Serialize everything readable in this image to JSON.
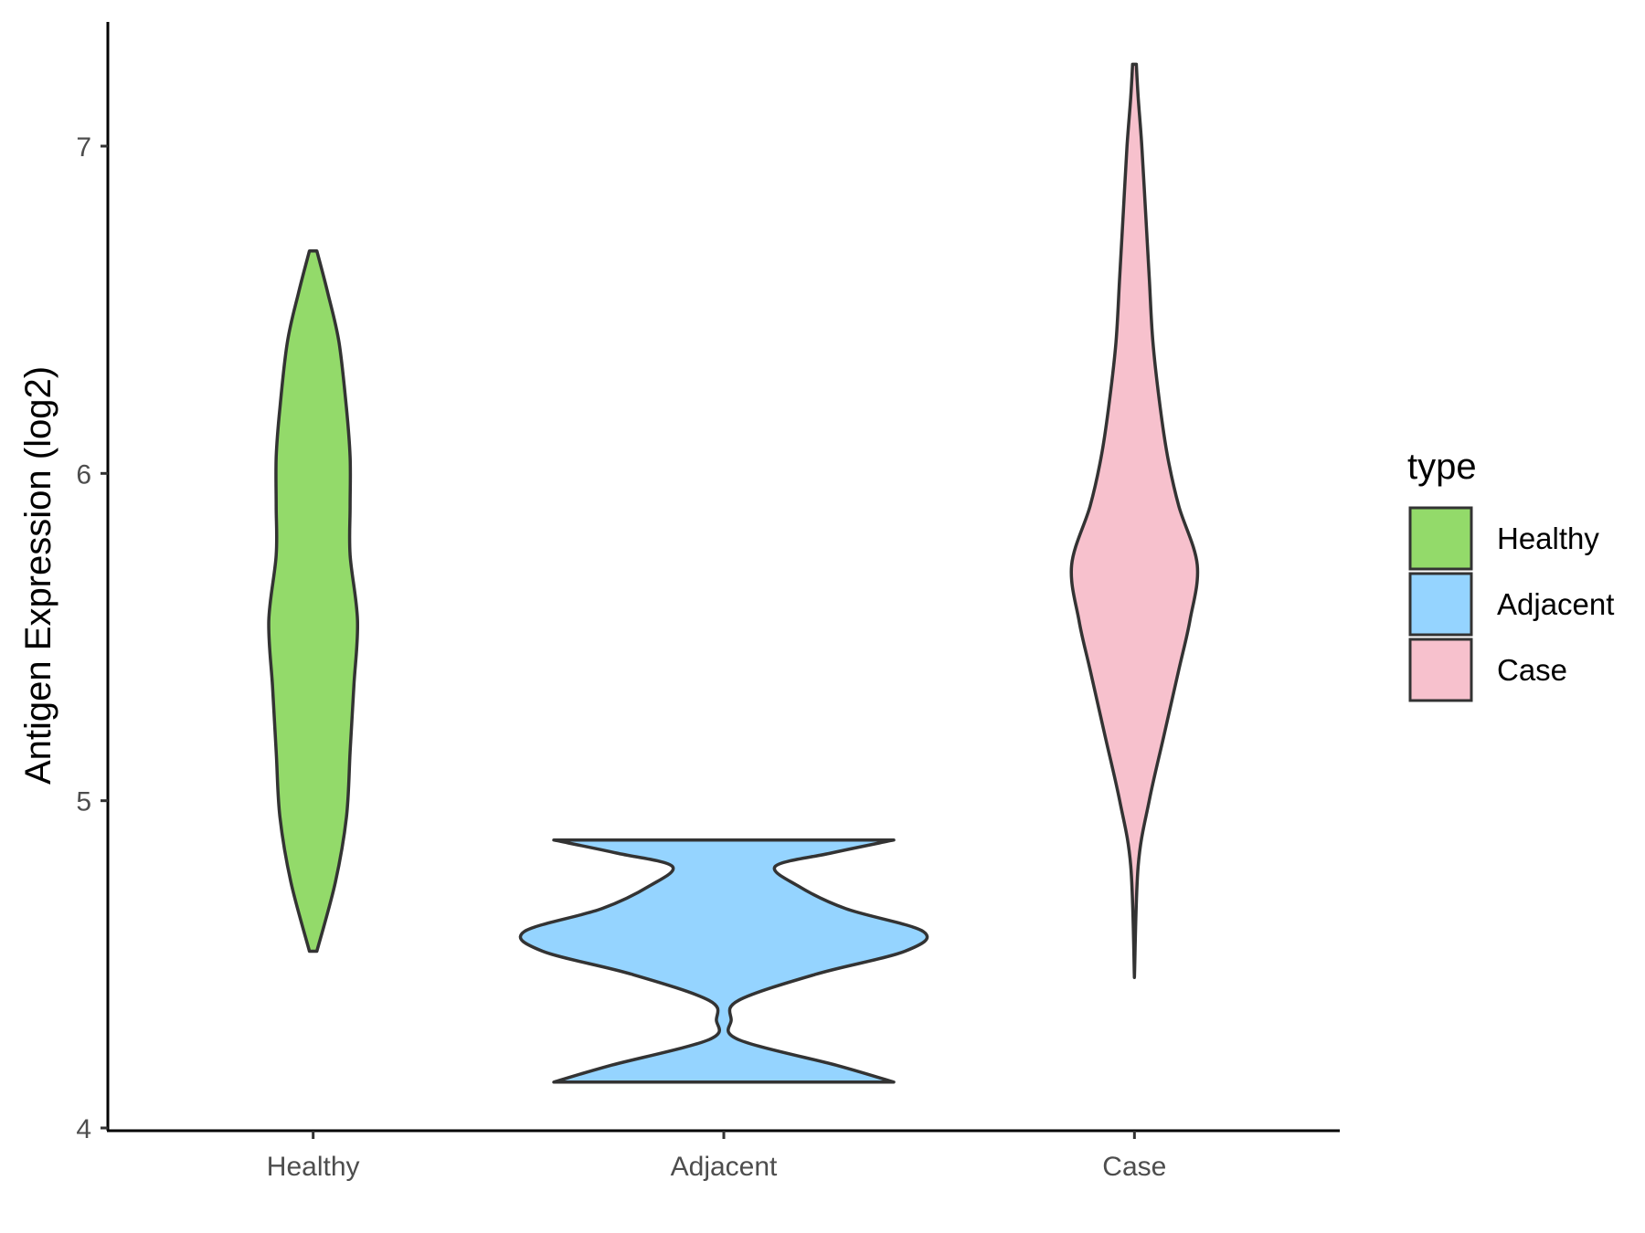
{
  "chart_data": {
    "type": "violin",
    "title": "",
    "xlabel": "",
    "ylabel": "Antigen Expression (log2)",
    "ylim": [
      4,
      7.4
    ],
    "yticks": [
      4,
      5,
      6,
      7
    ],
    "categories": [
      "Healthy",
      "Adjacent",
      "Case"
    ],
    "grid": false,
    "legend": {
      "title": "type",
      "position": "right",
      "entries": [
        {
          "label": "Healthy",
          "color": "#93DA6A"
        },
        {
          "label": "Adjacent",
          "color": "#95D4FF"
        },
        {
          "label": "Case",
          "color": "#F7C1CD"
        }
      ]
    },
    "series": [
      {
        "category": "Healthy",
        "color": "#93DA6A",
        "min": 4.54,
        "max": 6.68,
        "density_profile": [
          [
            4.54,
            0.01
          ],
          [
            4.75,
            0.06
          ],
          [
            4.95,
            0.09
          ],
          [
            5.15,
            0.1
          ],
          [
            5.35,
            0.11
          ],
          [
            5.55,
            0.12
          ],
          [
            5.75,
            0.1
          ],
          [
            5.9,
            0.1
          ],
          [
            6.05,
            0.1
          ],
          [
            6.2,
            0.09
          ],
          [
            6.4,
            0.07
          ],
          [
            6.55,
            0.04
          ],
          [
            6.68,
            0.01
          ]
        ]
      },
      {
        "category": "Adjacent",
        "color": "#95D4FF",
        "min": 4.14,
        "max": 4.88,
        "density_profile": [
          [
            4.14,
            0.46
          ],
          [
            4.19,
            0.31
          ],
          [
            4.27,
            0.04
          ],
          [
            4.33,
            0.02
          ],
          [
            4.39,
            0.04
          ],
          [
            4.47,
            0.25
          ],
          [
            4.54,
            0.49
          ],
          [
            4.6,
            0.54
          ],
          [
            4.67,
            0.33
          ],
          [
            4.74,
            0.2
          ],
          [
            4.8,
            0.14
          ],
          [
            4.84,
            0.29
          ],
          [
            4.88,
            0.46
          ]
        ]
      },
      {
        "category": "Case",
        "color": "#F7C1CD",
        "min": 4.46,
        "max": 7.25,
        "density_profile": [
          [
            4.46,
            0.0
          ],
          [
            4.8,
            0.01
          ],
          [
            5.0,
            0.04
          ],
          [
            5.2,
            0.08
          ],
          [
            5.4,
            0.12
          ],
          [
            5.55,
            0.15
          ],
          [
            5.72,
            0.17
          ],
          [
            5.9,
            0.12
          ],
          [
            6.05,
            0.09
          ],
          [
            6.2,
            0.07
          ],
          [
            6.4,
            0.05
          ],
          [
            6.6,
            0.04
          ],
          [
            6.8,
            0.03
          ],
          [
            7.0,
            0.02
          ],
          [
            7.15,
            0.01
          ],
          [
            7.25,
            0.005
          ]
        ]
      }
    ]
  }
}
